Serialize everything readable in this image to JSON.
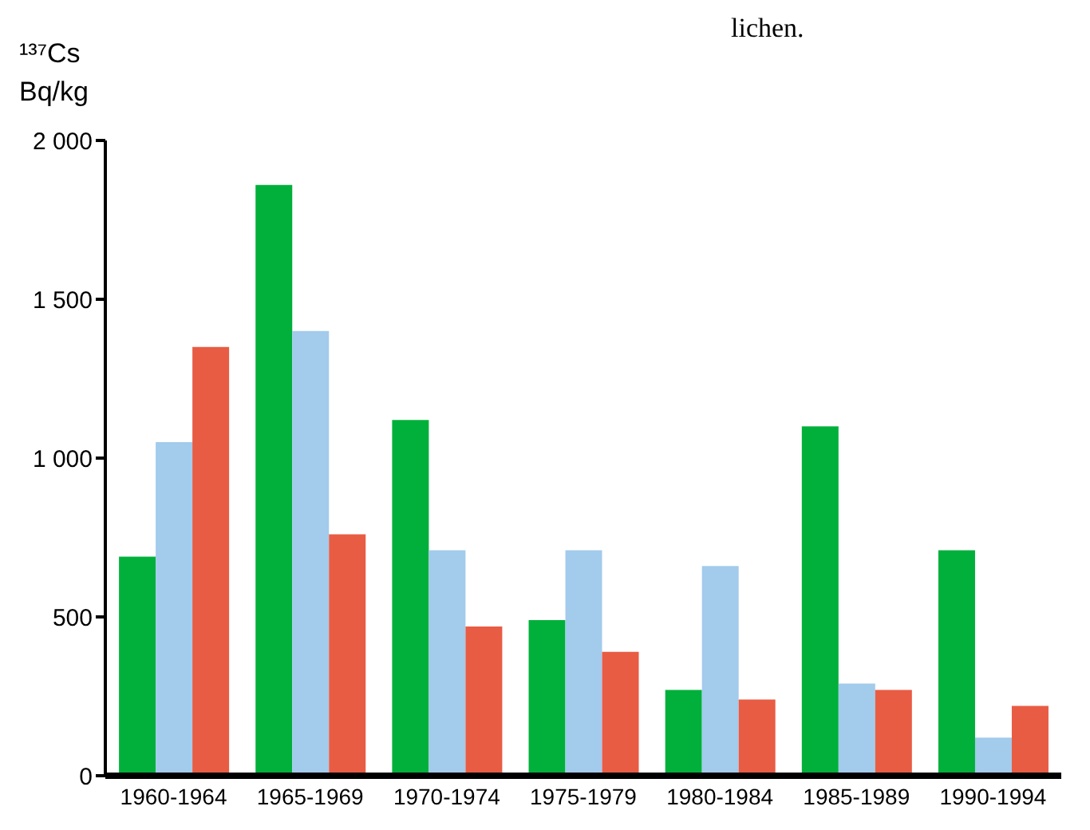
{
  "chart_data": {
    "type": "bar",
    "ylabel": "¹³⁷Cs\nBq/kg",
    "annotations": [
      "lichen."
    ],
    "categories": [
      "1960-1964",
      "1965-1969",
      "1970-1974",
      "1975-1979",
      "1980-1984",
      "1985-1989",
      "1990-1994"
    ],
    "series": [
      {
        "color": "#00b03a",
        "values": [
          690,
          1860,
          1120,
          490,
          270,
          1100,
          710
        ]
      },
      {
        "color": "#a2cbec",
        "values": [
          1050,
          1400,
          710,
          710,
          660,
          290,
          120
        ]
      },
      {
        "color": "#e85c44",
        "values": [
          1350,
          760,
          470,
          390,
          240,
          270,
          220
        ]
      }
    ],
    "ylim": [
      0,
      2000
    ],
    "yticks": [
      0,
      {
        "value": 500,
        "label": "500"
      },
      {
        "value": 1000,
        "label": "1 000"
      },
      {
        "value": 1500,
        "label": "1 500"
      },
      {
        "value": 2000,
        "label": "2 000"
      }
    ],
    "grid": false,
    "legend": false
  }
}
